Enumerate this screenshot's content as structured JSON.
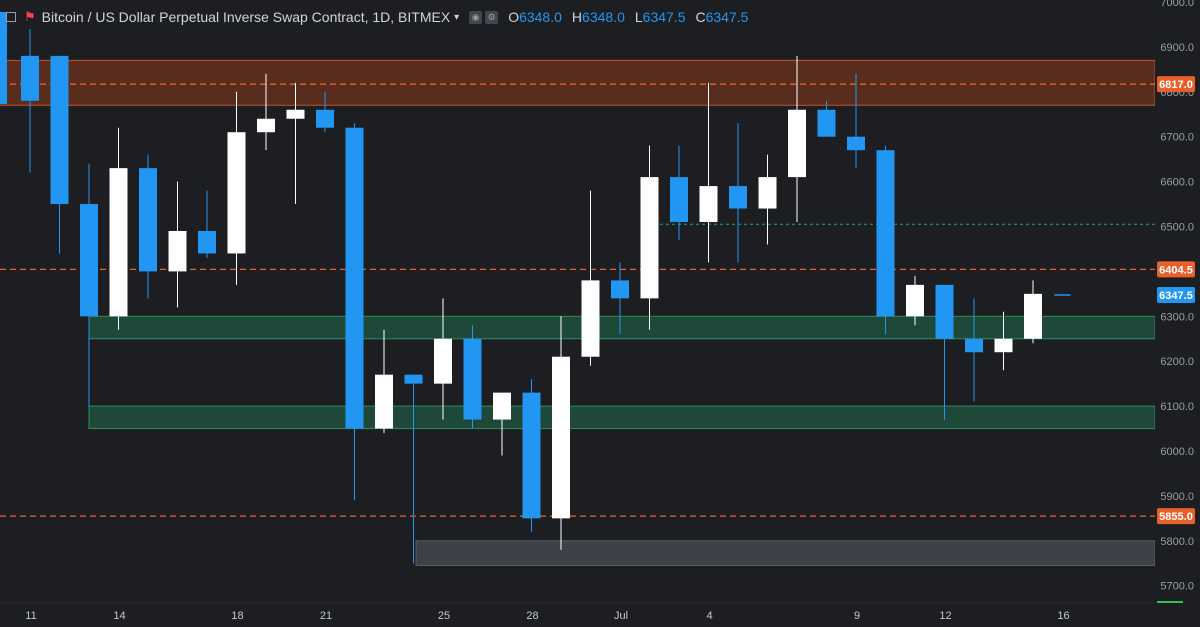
{
  "header": {
    "title": "Bitcoin / US Dollar Perpetual Inverse Swap Contract, 1D, BITMEX",
    "ohlc": [
      {
        "key": "O",
        "value": "6348.0"
      },
      {
        "key": "H",
        "value": "6348.0"
      },
      {
        "key": "L",
        "value": "6347.5"
      },
      {
        "key": "C",
        "value": "6347.5"
      }
    ]
  },
  "colors": {
    "background": "#1d1e22",
    "up_candle": "#ffffff",
    "down_candle": "#2196f3",
    "resistance_zone": "#8a3a1c",
    "support_zone": "#1f6b4a",
    "level_line": "#e8612c",
    "dotted_line": "#26a65b",
    "last_price_tag": "#2196f3"
  },
  "chart_data": {
    "type": "candlestick",
    "y_axis": {
      "min": 5650,
      "max": 7000,
      "ticks": [
        "7000.0",
        "6900.0",
        "6800.0",
        "6700.0",
        "6600.0",
        "6500.0",
        "6400.0",
        "6300.0",
        "6200.0",
        "6100.0",
        "6000.0",
        "5900.0",
        "5800.0",
        "5700.0"
      ]
    },
    "x_axis": {
      "labels": [
        "11",
        "14",
        "18",
        "21",
        "25",
        "28",
        "Jul",
        "4",
        "9",
        "12",
        "16"
      ]
    },
    "candles": [
      {
        "o": 6880,
        "h": 6940,
        "l": 6620,
        "c": 6780
      },
      {
        "o": 6880,
        "h": 6880,
        "l": 6440,
        "c": 6550
      },
      {
        "o": 6550,
        "h": 6640,
        "l": 6100,
        "c": 6300
      },
      {
        "o": 6300,
        "h": 6720,
        "l": 6270,
        "c": 6630
      },
      {
        "o": 6630,
        "h": 6660,
        "l": 6340,
        "c": 6400
      },
      {
        "o": 6400,
        "h": 6600,
        "l": 6320,
        "c": 6490
      },
      {
        "o": 6490,
        "h": 6580,
        "l": 6430,
        "c": 6440
      },
      {
        "o": 6440,
        "h": 6800,
        "l": 6370,
        "c": 6710
      },
      {
        "o": 6710,
        "h": 6840,
        "l": 6670,
        "c": 6740
      },
      {
        "o": 6740,
        "h": 6820,
        "l": 6550,
        "c": 6760
      },
      {
        "o": 6760,
        "h": 6800,
        "l": 6710,
        "c": 6720
      },
      {
        "o": 6720,
        "h": 6730,
        "l": 5890,
        "c": 6050
      },
      {
        "o": 6050,
        "h": 6270,
        "l": 6040,
        "c": 6170
      },
      {
        "o": 6170,
        "h": 6170,
        "l": 5750,
        "c": 6150
      },
      {
        "o": 6150,
        "h": 6340,
        "l": 6070,
        "c": 6250
      },
      {
        "o": 6250,
        "h": 6280,
        "l": 6050,
        "c": 6070
      },
      {
        "o": 6070,
        "h": 6130,
        "l": 5990,
        "c": 6130
      },
      {
        "o": 6130,
        "h": 6160,
        "l": 5820,
        "c": 5850
      },
      {
        "o": 5850,
        "h": 6300,
        "l": 5780,
        "c": 6210
      },
      {
        "o": 6210,
        "h": 6580,
        "l": 6190,
        "c": 6380
      },
      {
        "o": 6380,
        "h": 6420,
        "l": 6260,
        "c": 6340
      },
      {
        "o": 6340,
        "h": 6680,
        "l": 6270,
        "c": 6610
      },
      {
        "o": 6610,
        "h": 6680,
        "l": 6470,
        "c": 6510
      },
      {
        "o": 6510,
        "h": 6820,
        "l": 6420,
        "c": 6590
      },
      {
        "o": 6590,
        "h": 6730,
        "l": 6420,
        "c": 6540
      },
      {
        "o": 6540,
        "h": 6660,
        "l": 6460,
        "c": 6610
      },
      {
        "o": 6610,
        "h": 6880,
        "l": 6510,
        "c": 6760
      },
      {
        "o": 6760,
        "h": 6780,
        "l": 6700,
        "c": 6700
      },
      {
        "o": 6700,
        "h": 6840,
        "l": 6630,
        "c": 6670
      },
      {
        "o": 6670,
        "h": 6680,
        "l": 6260,
        "c": 6300
      },
      {
        "o": 6300,
        "h": 6390,
        "l": 6280,
        "c": 6370
      },
      {
        "o": 6370,
        "h": 6370,
        "l": 6070,
        "c": 6250
      },
      {
        "o": 6250,
        "h": 6340,
        "l": 6110,
        "c": 6220
      },
      {
        "o": 6220,
        "h": 6310,
        "l": 6180,
        "c": 6250
      },
      {
        "o": 6250,
        "h": 6380,
        "l": 6240,
        "c": 6350
      }
    ],
    "last_price": 6347.5,
    "zones": [
      {
        "name": "resistance",
        "from": 6770,
        "to": 6870
      },
      {
        "name": "support-upper",
        "from": 6250,
        "to": 6300
      },
      {
        "name": "support-lower",
        "from": 6050,
        "to": 6100
      },
      {
        "name": "base-gray",
        "from": 5745,
        "to": 5800
      }
    ],
    "levels": [
      {
        "value": 6817.0,
        "label": "6817.0"
      },
      {
        "value": 6404.5,
        "label": "6404.5"
      },
      {
        "value": 5855.0,
        "label": "5855.0"
      }
    ],
    "dotted_level": 6505
  }
}
